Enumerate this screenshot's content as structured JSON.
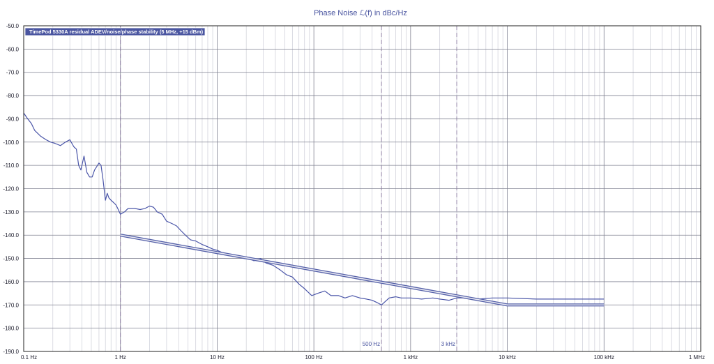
{
  "chart_data": {
    "type": "line",
    "title": "Phase  Noise ℒ(f) in dBc/Hz",
    "xscale": "log",
    "xlim": [
      0.1,
      1000000
    ],
    "ylim": [
      -190,
      -50
    ],
    "x_ticks": [
      {
        "value": 0.1,
        "label": "0.1 Hz"
      },
      {
        "value": 1,
        "label": "1 Hz"
      },
      {
        "value": 10,
        "label": "10 Hz"
      },
      {
        "value": 100,
        "label": "100 Hz"
      },
      {
        "value": 1000,
        "label": "1 kHz"
      },
      {
        "value": 10000,
        "label": "10 kHz"
      },
      {
        "value": 100000,
        "label": "100 kHz"
      },
      {
        "value": 1000000,
        "label": "1 MHz"
      }
    ],
    "y_ticks": [
      {
        "value": -50,
        "label": "-50.0"
      },
      {
        "value": -60,
        "label": "-60.0"
      },
      {
        "value": -70,
        "label": "-70.0"
      },
      {
        "value": -80,
        "label": "-80.0"
      },
      {
        "value": -90,
        "label": "-90.0"
      },
      {
        "value": -100,
        "label": "-100.0"
      },
      {
        "value": -110,
        "label": "-110.0"
      },
      {
        "value": -120,
        "label": "-120.0"
      },
      {
        "value": -130,
        "label": "-130.0"
      },
      {
        "value": -140,
        "label": "-140.0"
      },
      {
        "value": -150,
        "label": "-150.0"
      },
      {
        "value": -160,
        "label": "-160.0"
      },
      {
        "value": -170,
        "label": "-170.0"
      },
      {
        "value": -180,
        "label": "-180.0"
      },
      {
        "value": -190,
        "label": "-190.0"
      }
    ],
    "grid": true,
    "legend": {
      "position": "top-left",
      "entries": [
        "TimePod 5330A residual ADEV/noise/phase stability (5 MHz, +15 dBm)"
      ]
    },
    "markers": [
      {
        "x": 1,
        "label": ""
      },
      {
        "x": 500,
        "label": "500 Hz"
      },
      {
        "x": 3000,
        "label": "3 kHz"
      }
    ],
    "series": [
      {
        "name": "TimePod 5330A residual ADEV/noise/phase stability (5 MHz, +15 dBm)",
        "points": [
          [
            0.1,
            -87.5
          ],
          [
            0.11,
            -90
          ],
          [
            0.12,
            -92
          ],
          [
            0.13,
            -95
          ],
          [
            0.15,
            -97.5
          ],
          [
            0.17,
            -99
          ],
          [
            0.19,
            -100
          ],
          [
            0.21,
            -100.5
          ],
          [
            0.24,
            -101.5
          ],
          [
            0.27,
            -100
          ],
          [
            0.3,
            -99
          ],
          [
            0.33,
            -102
          ],
          [
            0.35,
            -103
          ],
          [
            0.37,
            -110
          ],
          [
            0.39,
            -112
          ],
          [
            0.42,
            -106
          ],
          [
            0.45,
            -113
          ],
          [
            0.48,
            -115
          ],
          [
            0.51,
            -115
          ],
          [
            0.54,
            -112
          ],
          [
            0.58,
            -110
          ],
          [
            0.6,
            -109
          ],
          [
            0.63,
            -110
          ],
          [
            0.66,
            -116
          ],
          [
            0.7,
            -125
          ],
          [
            0.73,
            -122
          ],
          [
            0.76,
            -124
          ],
          [
            0.8,
            -125
          ],
          [
            0.85,
            -126
          ],
          [
            0.9,
            -127
          ],
          [
            0.95,
            -129
          ],
          [
            1.0,
            -131
          ],
          [
            1.1,
            -130
          ],
          [
            1.2,
            -128.5
          ],
          [
            1.4,
            -128.5
          ],
          [
            1.6,
            -129
          ],
          [
            1.8,
            -128.5
          ],
          [
            2.0,
            -127.5
          ],
          [
            2.2,
            -128
          ],
          [
            2.4,
            -130
          ],
          [
            2.7,
            -131
          ],
          [
            3.0,
            -134
          ],
          [
            3.4,
            -135
          ],
          [
            3.8,
            -136
          ],
          [
            4.2,
            -138
          ],
          [
            4.7,
            -140
          ],
          [
            5.3,
            -142
          ],
          [
            6.0,
            -142.5
          ],
          [
            7.0,
            -144
          ],
          [
            8.0,
            -145
          ],
          [
            9.0,
            -146
          ],
          [
            10,
            -146.5
          ],
          [
            12,
            -148
          ],
          [
            14,
            -148.5
          ],
          [
            17,
            -149
          ],
          [
            20,
            -149.5
          ],
          [
            24,
            -151
          ],
          [
            28,
            -150
          ],
          [
            32,
            -152
          ],
          [
            38,
            -153
          ],
          [
            45,
            -155
          ],
          [
            52,
            -157
          ],
          [
            60,
            -158
          ],
          [
            70,
            -161
          ],
          [
            80,
            -163
          ],
          [
            95,
            -166
          ],
          [
            110,
            -165
          ],
          [
            130,
            -164
          ],
          [
            150,
            -166
          ],
          [
            180,
            -166
          ],
          [
            210,
            -167
          ],
          [
            250,
            -166
          ],
          [
            300,
            -167
          ],
          [
            350,
            -167.5
          ],
          [
            400,
            -168
          ],
          [
            450,
            -169
          ],
          [
            500,
            -170
          ],
          [
            600,
            -167
          ],
          [
            700,
            -166.5
          ],
          [
            800,
            -167
          ],
          [
            1000,
            -167
          ],
          [
            1300,
            -167.5
          ],
          [
            1700,
            -167
          ],
          [
            2000,
            -167.5
          ],
          [
            2500,
            -168
          ],
          [
            3000,
            -167
          ],
          [
            4000,
            -167
          ],
          [
            5000,
            -167.5
          ],
          [
            7000,
            -167
          ],
          [
            10000,
            -167
          ],
          [
            20000,
            -167.5
          ],
          [
            50000,
            -167.5
          ],
          [
            100000,
            -167.5
          ]
        ]
      },
      {
        "name": "",
        "points": [
          [
            1,
            -140
          ],
          [
            10000,
            -170
          ],
          [
            100000,
            -170
          ]
        ]
      }
    ]
  }
}
